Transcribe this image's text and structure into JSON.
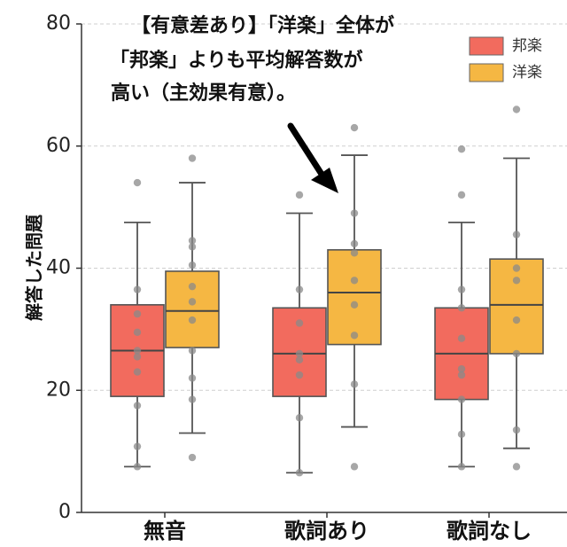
{
  "chart_data": {
    "type": "box",
    "ylabel": "解答した問題",
    "ylim": [
      0,
      80
    ],
    "yticks": [
      0,
      20,
      40,
      60,
      80
    ],
    "grid": "horizontal-dashed",
    "categories": [
      "無音",
      "歌詞あり",
      "歌詞なし"
    ],
    "legend": {
      "placement": "top-right",
      "entries": [
        {
          "name": "邦楽",
          "color": "#f26b5e"
        },
        {
          "name": "洋楽",
          "color": "#f5b743"
        }
      ]
    },
    "series": [
      {
        "name": "邦楽",
        "color": "#f26b5e",
        "boxes": [
          {
            "whisker_low": 7.5,
            "q1": 19,
            "median": 26.5,
            "q3": 34,
            "whisker_high": 47.5,
            "points": [
              54,
              36.5,
              32.5,
              29.5,
              26.5,
              25.5,
              23,
              17.5,
              10.8,
              7.5
            ]
          },
          {
            "whisker_low": 6.5,
            "q1": 19,
            "median": 26,
            "q3": 33.5,
            "whisker_high": 49,
            "points": [
              52,
              36.5,
              31,
              26,
              25,
              22.5,
              15.5,
              6.5
            ]
          },
          {
            "whisker_low": 7.5,
            "q1": 18.5,
            "median": 26,
            "q3": 33.5,
            "whisker_high": 47.5,
            "points": [
              59.5,
              52,
              36.5,
              33.5,
              28.5,
              23.5,
              22.5,
              18.5,
              12.8,
              7.5
            ]
          }
        ]
      },
      {
        "name": "洋楽",
        "color": "#f5b743",
        "boxes": [
          {
            "whisker_low": 13,
            "q1": 27,
            "median": 33,
            "q3": 39.5,
            "whisker_high": 54,
            "points": [
              58,
              44.5,
              43.5,
              40.5,
              37,
              34.5,
              31.5,
              26.5,
              22,
              18.5,
              9
            ]
          },
          {
            "whisker_low": 14,
            "q1": 27.5,
            "median": 36,
            "q3": 43,
            "whisker_high": 58.5,
            "points": [
              63,
              49,
              44,
              42.5,
              38,
              34,
              29,
              21,
              7.5
            ]
          },
          {
            "whisker_low": 10.5,
            "q1": 26,
            "median": 34,
            "q3": 41.5,
            "whisker_high": 58,
            "points": [
              66,
              45.5,
              40,
              38,
              31.5,
              26,
              13.5,
              7.5
            ]
          }
        ]
      }
    ],
    "annotation": {
      "lines": [
        "【有意差あり】「洋楽」全体が",
        "「邦楽」よりも平均解答数が",
        "高い（主効果有意）。"
      ],
      "arrow": true
    }
  }
}
